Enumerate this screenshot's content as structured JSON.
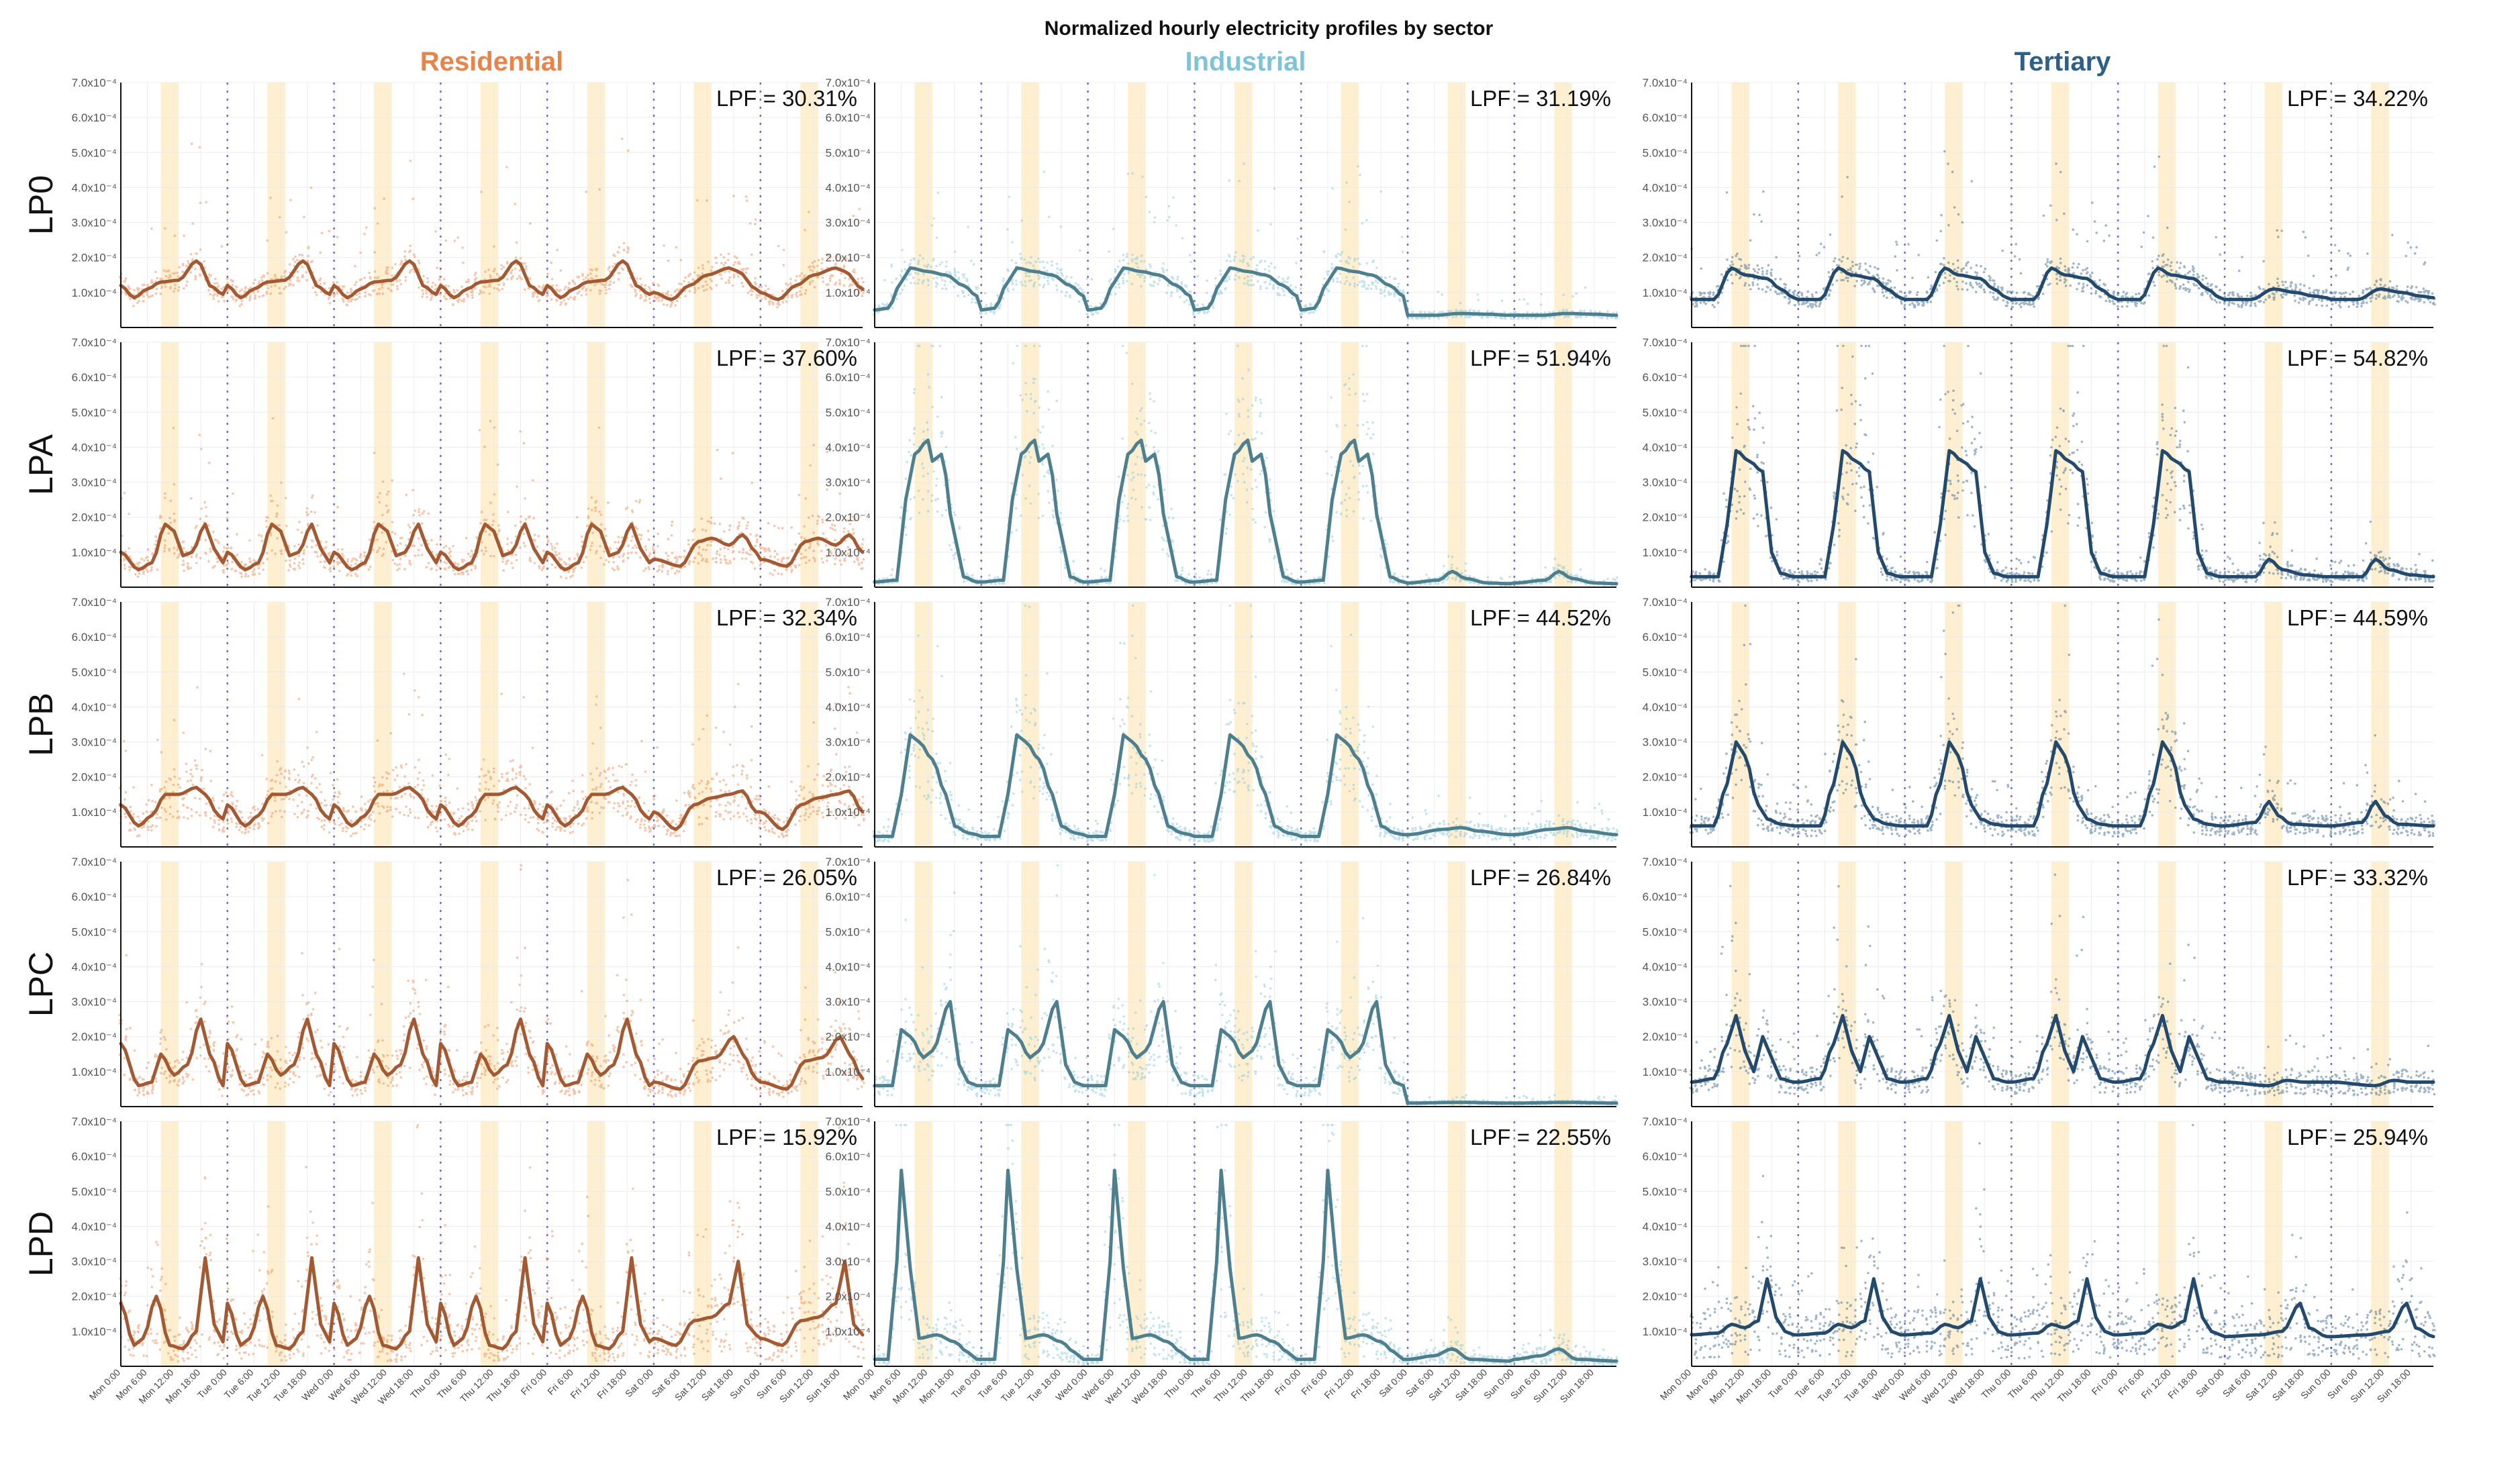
{
  "figure": {
    "title": "Normalized hourly electricity profiles by sector",
    "sectors": [
      {
        "name": "Residential",
        "color": "#E8834A",
        "line_color": "#A35A33"
      },
      {
        "name": "Industrial",
        "color": "#7EC3D6",
        "line_color": "#4E7F8F"
      },
      {
        "name": "Tertiary",
        "color": "#2E5F86",
        "line_color": "#234A6C"
      }
    ],
    "profiles": [
      "LP0",
      "LPA",
      "LPB",
      "LPC",
      "LPD"
    ],
    "y_ticks": [
      "1.0x10⁻⁴",
      "2.0x10⁻⁴",
      "3.0x10⁻⁴",
      "4.0x10⁻⁴",
      "5.0x10⁻⁴",
      "6.0x10⁻⁴",
      "7.0x10⁻⁴"
    ],
    "x_ticks": [
      "Mon 0:00",
      "Mon 6:00",
      "Mon 12:00",
      "Mon 18:00",
      "Tue 0:00",
      "Tue 6:00",
      "Tue 12:00",
      "Tue 18:00",
      "Wed 0:00",
      "Wed 6:00",
      "Wed 12:00",
      "Wed 18:00",
      "Thu 0:00",
      "Thu 6:00",
      "Thu 12:00",
      "Thu 18:00",
      "Fri 0:00",
      "Fri 6:00",
      "Fri 12:00",
      "Fri 18:00",
      "Sat 0:00",
      "Sat 6:00",
      "Sat 12:00",
      "Sat 18:00",
      "Sun 0:00",
      "Sun 6:00",
      "Sun 12:00",
      "Sun 18:00"
    ]
  },
  "chart_data": {
    "type": "line",
    "title": "Normalized hourly electricity profiles by sector",
    "xlabel": "",
    "ylabel": "",
    "ylim": [
      0,
      0.0007
    ],
    "x_unit": "hour of week (0-167)",
    "highlight_bands": "hours 9-13 of each day",
    "day_separators": "dotted vertical lines at midnight",
    "panels": [
      {
        "sector": "Residential",
        "profile": "LP0",
        "lpf": "LPF = 30.31%",
        "key_x": [
          0,
          3,
          6,
          9,
          13,
          17,
          18,
          20,
          23
        ],
        "key_y": [
          0.00012,
          8.5e-05,
          0.00011,
          0.00013,
          0.000135,
          0.00019,
          0.00018,
          0.00012,
          9.5e-05
        ],
        "weekend_key_x": [
          0,
          4,
          8,
          12,
          17,
          19,
          23
        ],
        "weekend_key_y": [
          0.0001,
          8e-05,
          0.00012,
          0.00015,
          0.00017,
          0.00016,
          0.00011
        ]
      },
      {
        "sector": "Industrial",
        "profile": "LP0",
        "lpf": "LPF = 31.19%",
        "key_x": [
          0,
          3,
          6,
          8,
          12,
          16,
          20,
          23
        ],
        "key_y": [
          5e-05,
          5.5e-05,
          0.00013,
          0.00017,
          0.00016,
          0.00015,
          0.00012,
          9e-05
        ],
        "weekend_key_x": [
          0,
          6,
          12,
          18,
          23
        ],
        "weekend_key_y": [
          3.5e-05,
          3.5e-05,
          4e-05,
          3.8e-05,
          3.5e-05
        ]
      },
      {
        "sector": "Tertiary",
        "profile": "LP0",
        "lpf": "LPF = 34.22%",
        "key_x": [
          0,
          5,
          9,
          12,
          17,
          20,
          23
        ],
        "key_y": [
          8e-05,
          8e-05,
          0.00017,
          0.00015,
          0.00014,
          0.00011,
          8.5e-05
        ],
        "weekend_key_x": [
          0,
          6,
          11,
          16,
          20,
          23
        ],
        "weekend_key_y": [
          8e-05,
          8e-05,
          0.00011,
          0.0001,
          9e-05,
          8.5e-05
        ]
      },
      {
        "sector": "Residential",
        "profile": "LPA",
        "lpf": "LPF = 37.60%",
        "key_x": [
          0,
          4,
          7,
          10,
          12,
          14,
          16,
          19,
          21,
          23
        ],
        "key_y": [
          0.0001,
          5e-05,
          7e-05,
          0.00018,
          0.00016,
          9e-05,
          0.0001,
          0.00018,
          0.00011,
          7e-05
        ],
        "weekend_key_x": [
          0,
          6,
          10,
          13,
          17,
          20,
          23
        ],
        "weekend_key_y": [
          8e-05,
          6e-05,
          0.00013,
          0.00014,
          0.00012,
          0.00015,
          0.0001
        ]
      },
      {
        "sector": "Industrial",
        "profile": "LPA",
        "lpf": "LPF = 51.94%",
        "key_x": [
          0,
          5,
          7,
          9,
          12,
          13,
          15,
          18,
          20,
          23
        ],
        "key_y": [
          1.5e-05,
          2e-05,
          0.00025,
          0.00038,
          0.00042,
          0.00036,
          0.00038,
          0.00015,
          3e-05,
          1.5e-05
        ],
        "weekend_key_x": [
          0,
          7,
          10,
          13,
          18,
          23
        ],
        "weekend_key_y": [
          1.2e-05,
          2e-05,
          4.5e-05,
          2.5e-05,
          1.2e-05,
          1e-05
        ]
      },
      {
        "sector": "Tertiary",
        "profile": "LPA",
        "lpf": "LPF = 54.82%",
        "key_x": [
          0,
          6,
          8,
          10,
          13,
          16,
          18,
          20,
          23
        ],
        "key_y": [
          3e-05,
          3e-05,
          0.00018,
          0.00039,
          0.00036,
          0.00033,
          0.0001,
          4e-05,
          3e-05
        ],
        "weekend_key_x": [
          0,
          7,
          10,
          13,
          18,
          23
        ],
        "weekend_key_y": [
          3e-05,
          3e-05,
          8e-05,
          5e-05,
          3.5e-05,
          3e-05
        ]
      },
      {
        "sector": "Residential",
        "profile": "LPB",
        "lpf": "LPF = 32.34%",
        "key_x": [
          0,
          4,
          7,
          10,
          13,
          17,
          19,
          22,
          23
        ],
        "key_y": [
          0.00012,
          6e-05,
          9e-05,
          0.00015,
          0.00015,
          0.00017,
          0.00015,
          9e-05,
          8e-05
        ],
        "weekend_key_x": [
          0,
          5,
          9,
          13,
          17,
          20,
          23
        ],
        "weekend_key_y": [
          0.0001,
          5e-05,
          0.00012,
          0.00014,
          0.00015,
          0.00016,
          0.0001
        ]
      },
      {
        "sector": "Industrial",
        "profile": "LPB",
        "lpf": "LPF = 44.52%",
        "key_x": [
          0,
          4,
          6,
          8,
          10,
          13,
          16,
          18,
          21,
          23
        ],
        "key_y": [
          3e-05,
          3e-05,
          0.00015,
          0.00032,
          0.0003,
          0.00025,
          0.00015,
          6e-05,
          4e-05,
          3.5e-05
        ],
        "weekend_key_x": [
          0,
          8,
          12,
          16,
          23
        ],
        "weekend_key_y": [
          3.5e-05,
          5e-05,
          5.5e-05,
          4.5e-05,
          3.5e-05
        ]
      },
      {
        "sector": "Tertiary",
        "profile": "LPB",
        "lpf": "LPF = 44.59%",
        "key_x": [
          0,
          5,
          8,
          10,
          12,
          15,
          17,
          20,
          23
        ],
        "key_y": [
          6e-05,
          6e-05,
          0.00018,
          0.0003,
          0.00026,
          0.00012,
          8e-05,
          6.5e-05,
          6e-05
        ],
        "weekend_key_x": [
          0,
          7,
          10,
          12,
          15,
          23
        ],
        "weekend_key_y": [
          6e-05,
          7e-05,
          0.00013,
          9e-05,
          6.5e-05,
          6e-05
        ]
      },
      {
        "sector": "Residential",
        "profile": "LPC",
        "lpf": "LPF = 26.05%",
        "key_x": [
          0,
          4,
          7,
          9,
          12,
          15,
          18,
          20,
          23
        ],
        "key_y": [
          0.00018,
          6e-05,
          7e-05,
          0.00015,
          9e-05,
          0.00012,
          0.00025,
          0.00015,
          6e-05
        ],
        "weekend_key_x": [
          0,
          6,
          10,
          14,
          18,
          20,
          23
        ],
        "weekend_key_y": [
          7e-05,
          5e-05,
          0.00013,
          0.00014,
          0.0002,
          0.00015,
          8e-05
        ]
      },
      {
        "sector": "Industrial",
        "profile": "LPC",
        "lpf": "LPF = 26.84%",
        "key_x": [
          0,
          4,
          6,
          8,
          11,
          13,
          17,
          19,
          21,
          23
        ],
        "key_y": [
          6e-05,
          6e-05,
          0.00022,
          0.0002,
          0.00014,
          0.00016,
          0.0003,
          0.00012,
          7e-05,
          6e-05
        ],
        "weekend_key_x": [
          0,
          12,
          23
        ],
        "weekend_key_y": [
          1e-05,
          1.2e-05,
          1e-05
        ]
      },
      {
        "sector": "Tertiary",
        "profile": "LPC",
        "lpf": "LPF = 33.32%",
        "key_x": [
          0,
          5,
          8,
          10,
          12,
          14,
          16,
          18,
          20,
          23
        ],
        "key_y": [
          7e-05,
          8e-05,
          0.00018,
          0.00026,
          0.00016,
          0.0001,
          0.0002,
          0.00014,
          8e-05,
          7e-05
        ],
        "weekend_key_x": [
          0,
          10,
          14,
          18,
          23
        ],
        "weekend_key_y": [
          7e-05,
          6e-05,
          7.5e-05,
          7e-05,
          7e-05
        ]
      },
      {
        "sector": "Residential",
        "profile": "LPD",
        "lpf": "LPF = 15.92%",
        "key_x": [
          0,
          3,
          5,
          8,
          11,
          14,
          17,
          19,
          21,
          23
        ],
        "key_y": [
          0.00018,
          6e-05,
          8e-05,
          0.0002,
          6e-05,
          5e-05,
          0.0001,
          0.00031,
          0.00012,
          7e-05
        ],
        "weekend_key_x": [
          0,
          5,
          9,
          13,
          17,
          19,
          21,
          23
        ],
        "weekend_key_y": [
          8e-05,
          6e-05,
          0.00013,
          0.00014,
          0.00018,
          0.0003,
          0.00012,
          9e-05
        ]
      },
      {
        "sector": "Industrial",
        "profile": "LPD",
        "lpf": "LPF = 22.55%",
        "key_x": [
          0,
          3,
          5,
          6,
          8,
          10,
          14,
          18,
          21,
          23
        ],
        "key_y": [
          2e-05,
          2e-05,
          0.0003,
          0.00056,
          0.00028,
          8e-05,
          9e-05,
          7e-05,
          4e-05,
          2e-05
        ],
        "weekend_key_x": [
          0,
          6,
          10,
          14,
          23
        ],
        "weekend_key_y": [
          2e-05,
          3e-05,
          5e-05,
          2e-05,
          1.5e-05
        ]
      },
      {
        "sector": "Tertiary",
        "profile": "LPD",
        "lpf": "LPF = 25.94%",
        "key_x": [
          0,
          6,
          9,
          12,
          15,
          17,
          19,
          21,
          23
        ],
        "key_y": [
          9e-05,
          9.5e-05,
          0.00012,
          0.00011,
          0.00013,
          0.00025,
          0.00014,
          0.0001,
          9e-05
        ],
        "weekend_key_x": [
          0,
          8,
          13,
          17,
          19,
          23
        ],
        "weekend_key_y": [
          8.5e-05,
          9e-05,
          0.0001,
          0.00018,
          0.00011,
          8.5e-05
        ]
      }
    ]
  }
}
